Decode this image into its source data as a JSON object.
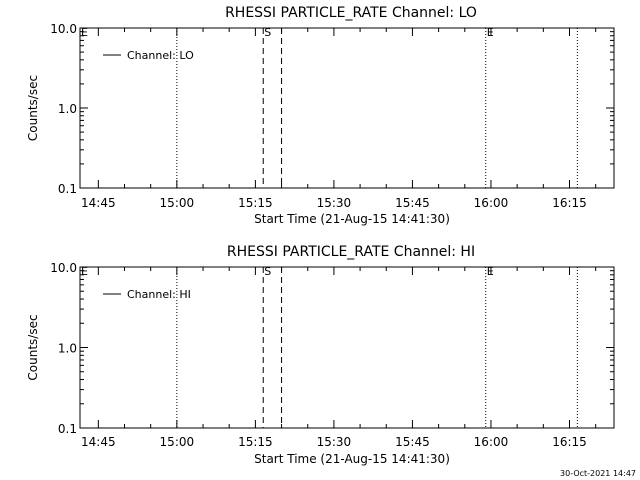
{
  "chart_data": [
    {
      "type": "line",
      "title": "RHESSI PARTICLE_RATE Channel: LO",
      "xlabel": "Start Time (21-Aug-15 14:41:30)",
      "ylabel": "Counts/sec",
      "xlim": [
        "14:41:30",
        "16:23:30"
      ],
      "ylim": [
        0.1,
        10.0
      ],
      "yscale": "log",
      "xticks": [
        "14:45",
        "15:00",
        "15:15",
        "15:30",
        "15:45",
        "16:00",
        "16:15"
      ],
      "yticks": [
        "0.1",
        "1.0",
        "10.0"
      ],
      "series": [
        {
          "name": "Channel: LO",
          "values": []
        }
      ],
      "legend": "top-left",
      "grid": false,
      "markers": [
        {
          "time": "15:00:00",
          "style": "dotted",
          "label": ""
        },
        {
          "time": "15:16:30",
          "style": "dashed",
          "label": "S"
        },
        {
          "time": "15:20:00",
          "style": "dashed",
          "label": ""
        },
        {
          "time": "15:59:00",
          "style": "dotted",
          "label": "E"
        },
        {
          "time": "16:16:30",
          "style": "dotted",
          "label": ""
        },
        {
          "time": "14:41:30",
          "style": "none",
          "label": "E"
        }
      ]
    },
    {
      "type": "line",
      "title": "RHESSI PARTICLE_RATE Channel: HI",
      "xlabel": "Start Time (21-Aug-15 14:41:30)",
      "ylabel": "Counts/sec",
      "xlim": [
        "14:41:30",
        "16:23:30"
      ],
      "ylim": [
        0.1,
        10.0
      ],
      "yscale": "log",
      "xticks": [
        "14:45",
        "15:00",
        "15:15",
        "15:30",
        "15:45",
        "16:00",
        "16:15"
      ],
      "yticks": [
        "0.1",
        "1.0",
        "10.0"
      ],
      "series": [
        {
          "name": "Channel: HI",
          "values": []
        }
      ],
      "legend": "top-left",
      "grid": false,
      "markers": [
        {
          "time": "15:00:00",
          "style": "dotted",
          "label": ""
        },
        {
          "time": "15:16:30",
          "style": "dashed",
          "label": "S"
        },
        {
          "time": "15:20:00",
          "style": "dashed",
          "label": ""
        },
        {
          "time": "15:59:00",
          "style": "dotted",
          "label": "E"
        },
        {
          "time": "16:16:30",
          "style": "dotted",
          "label": ""
        },
        {
          "time": "14:41:30",
          "style": "none",
          "label": "E"
        }
      ]
    }
  ],
  "footer": {
    "timestamp": "30-Oct-2021 14:47"
  }
}
